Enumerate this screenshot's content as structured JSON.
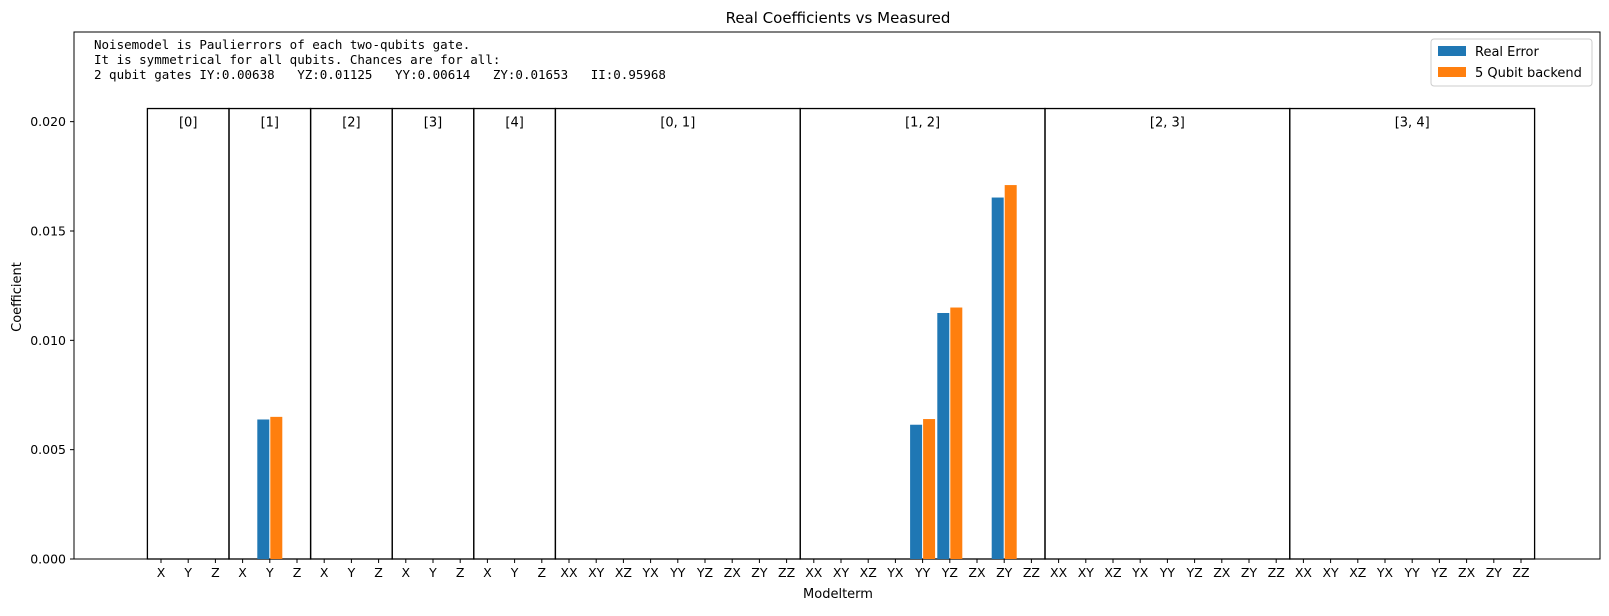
{
  "chart_data": {
    "type": "bar",
    "title": "Real Coefficients vs Measured",
    "xlabel": "Modelterm",
    "ylabel": "Coefficient",
    "ylim": [
      0,
      0.0241
    ],
    "yticks": [
      0.0,
      0.005,
      0.01,
      0.015,
      0.02
    ],
    "ytick_labels": [
      "0.000",
      "0.005",
      "0.010",
      "0.015",
      "0.020"
    ],
    "grid": false,
    "legend_position": "top-right",
    "annotation_lines": [
      "Noisemodel is Paulierrors of each two-qubits gate.",
      "It is symmetrical for all qubits. Chances are for all:",
      "2 qubit gates IY:0.00638   YZ:0.01125   YY:0.00614   ZY:0.01653   II:0.95968"
    ],
    "groups": [
      {
        "label": "[0]",
        "terms": [
          "X",
          "Y",
          "Z"
        ]
      },
      {
        "label": "[1]",
        "terms": [
          "X",
          "Y",
          "Z"
        ]
      },
      {
        "label": "[2]",
        "terms": [
          "X",
          "Y",
          "Z"
        ]
      },
      {
        "label": "[3]",
        "terms": [
          "X",
          "Y",
          "Z"
        ]
      },
      {
        "label": "[4]",
        "terms": [
          "X",
          "Y",
          "Z"
        ]
      },
      {
        "label": "[0, 1]",
        "terms": [
          "XX",
          "XY",
          "XZ",
          "YX",
          "YY",
          "YZ",
          "ZX",
          "ZY",
          "ZZ"
        ]
      },
      {
        "label": "[1, 2]",
        "terms": [
          "XX",
          "XY",
          "XZ",
          "YX",
          "YY",
          "YZ",
          "ZX",
          "ZY",
          "ZZ"
        ]
      },
      {
        "label": "[2, 3]",
        "terms": [
          "XX",
          "XY",
          "XZ",
          "YX",
          "YY",
          "YZ",
          "ZX",
          "ZY",
          "ZZ"
        ]
      },
      {
        "label": "[3, 4]",
        "terms": [
          "XX",
          "XY",
          "XZ",
          "YX",
          "YY",
          "YZ",
          "ZX",
          "ZY",
          "ZZ"
        ]
      }
    ],
    "groups_box_top": 0.0206,
    "series": [
      {
        "name": "Real Error",
        "color": "#1f77b4",
        "values": [
          0,
          0,
          0,
          0,
          0.00638,
          0,
          0,
          0,
          0,
          0,
          0,
          0,
          0,
          0,
          0,
          0,
          0,
          0,
          0,
          0,
          0,
          0,
          0,
          0,
          0,
          0,
          0,
          0,
          0.00614,
          0.01125,
          0,
          0.01653,
          0,
          0,
          0,
          0,
          0,
          0,
          0,
          0,
          0,
          0,
          0,
          0,
          0,
          0,
          0,
          0,
          0,
          0,
          0
        ]
      },
      {
        "name": "5 Qubit backend",
        "color": "#ff7f0e",
        "values": [
          0,
          0,
          0,
          0,
          0.0065,
          0,
          0,
          0,
          0,
          0,
          0,
          0,
          0,
          0,
          0,
          0,
          0,
          0,
          0,
          0,
          0,
          0,
          0,
          0,
          0,
          0,
          0,
          0,
          0.0064,
          0.0115,
          0,
          0.0171,
          0,
          0,
          0,
          0,
          0,
          0,
          0,
          0,
          0,
          0,
          0,
          0,
          0,
          0,
          0,
          0,
          0,
          0,
          0
        ]
      }
    ]
  }
}
